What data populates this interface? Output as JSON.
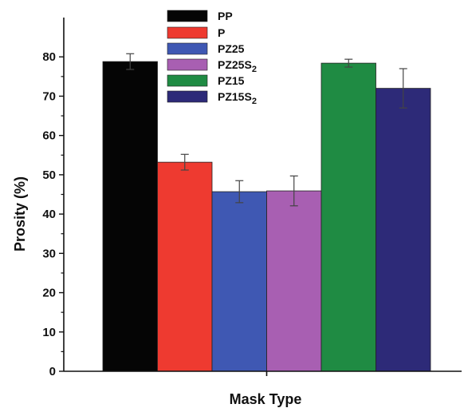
{
  "chart_data": {
    "type": "bar",
    "title": "",
    "xlabel": "Mask Type",
    "ylabel": "Prosity (%)",
    "ylim": [
      0,
      90
    ],
    "yticks": [
      0,
      10,
      20,
      30,
      40,
      50,
      60,
      70,
      80
    ],
    "grid": false,
    "legend_position": "top-center",
    "series": [
      {
        "name": "PP",
        "name_parts": [
          {
            "text": "PP",
            "sub": false
          }
        ],
        "value": 78.8,
        "error": 2.0,
        "color": "#050505"
      },
      {
        "name": "P",
        "name_parts": [
          {
            "text": "P",
            "sub": false
          }
        ],
        "value": 53.2,
        "error": 2.0,
        "color": "#ee3a30"
      },
      {
        "name": "PZ25",
        "name_parts": [
          {
            "text": "PZ25",
            "sub": false
          }
        ],
        "value": 45.7,
        "error": 2.8,
        "color": "#3f58b3"
      },
      {
        "name": "PZ25S2",
        "name_parts": [
          {
            "text": "PZ25S",
            "sub": false
          },
          {
            "text": "2",
            "sub": true
          }
        ],
        "value": 45.9,
        "error": 3.8,
        "color": "#a85fb2"
      },
      {
        "name": "PZ15",
        "name_parts": [
          {
            "text": "PZ15",
            "sub": false
          }
        ],
        "value": 78.4,
        "error": 1.0,
        "color": "#1f8b43"
      },
      {
        "name": "PZ15S2",
        "name_parts": [
          {
            "text": "PZ15S",
            "sub": false
          },
          {
            "text": "2",
            "sub": true
          }
        ],
        "value": 72.0,
        "error": 5.0,
        "color": "#2d2a78"
      }
    ]
  }
}
